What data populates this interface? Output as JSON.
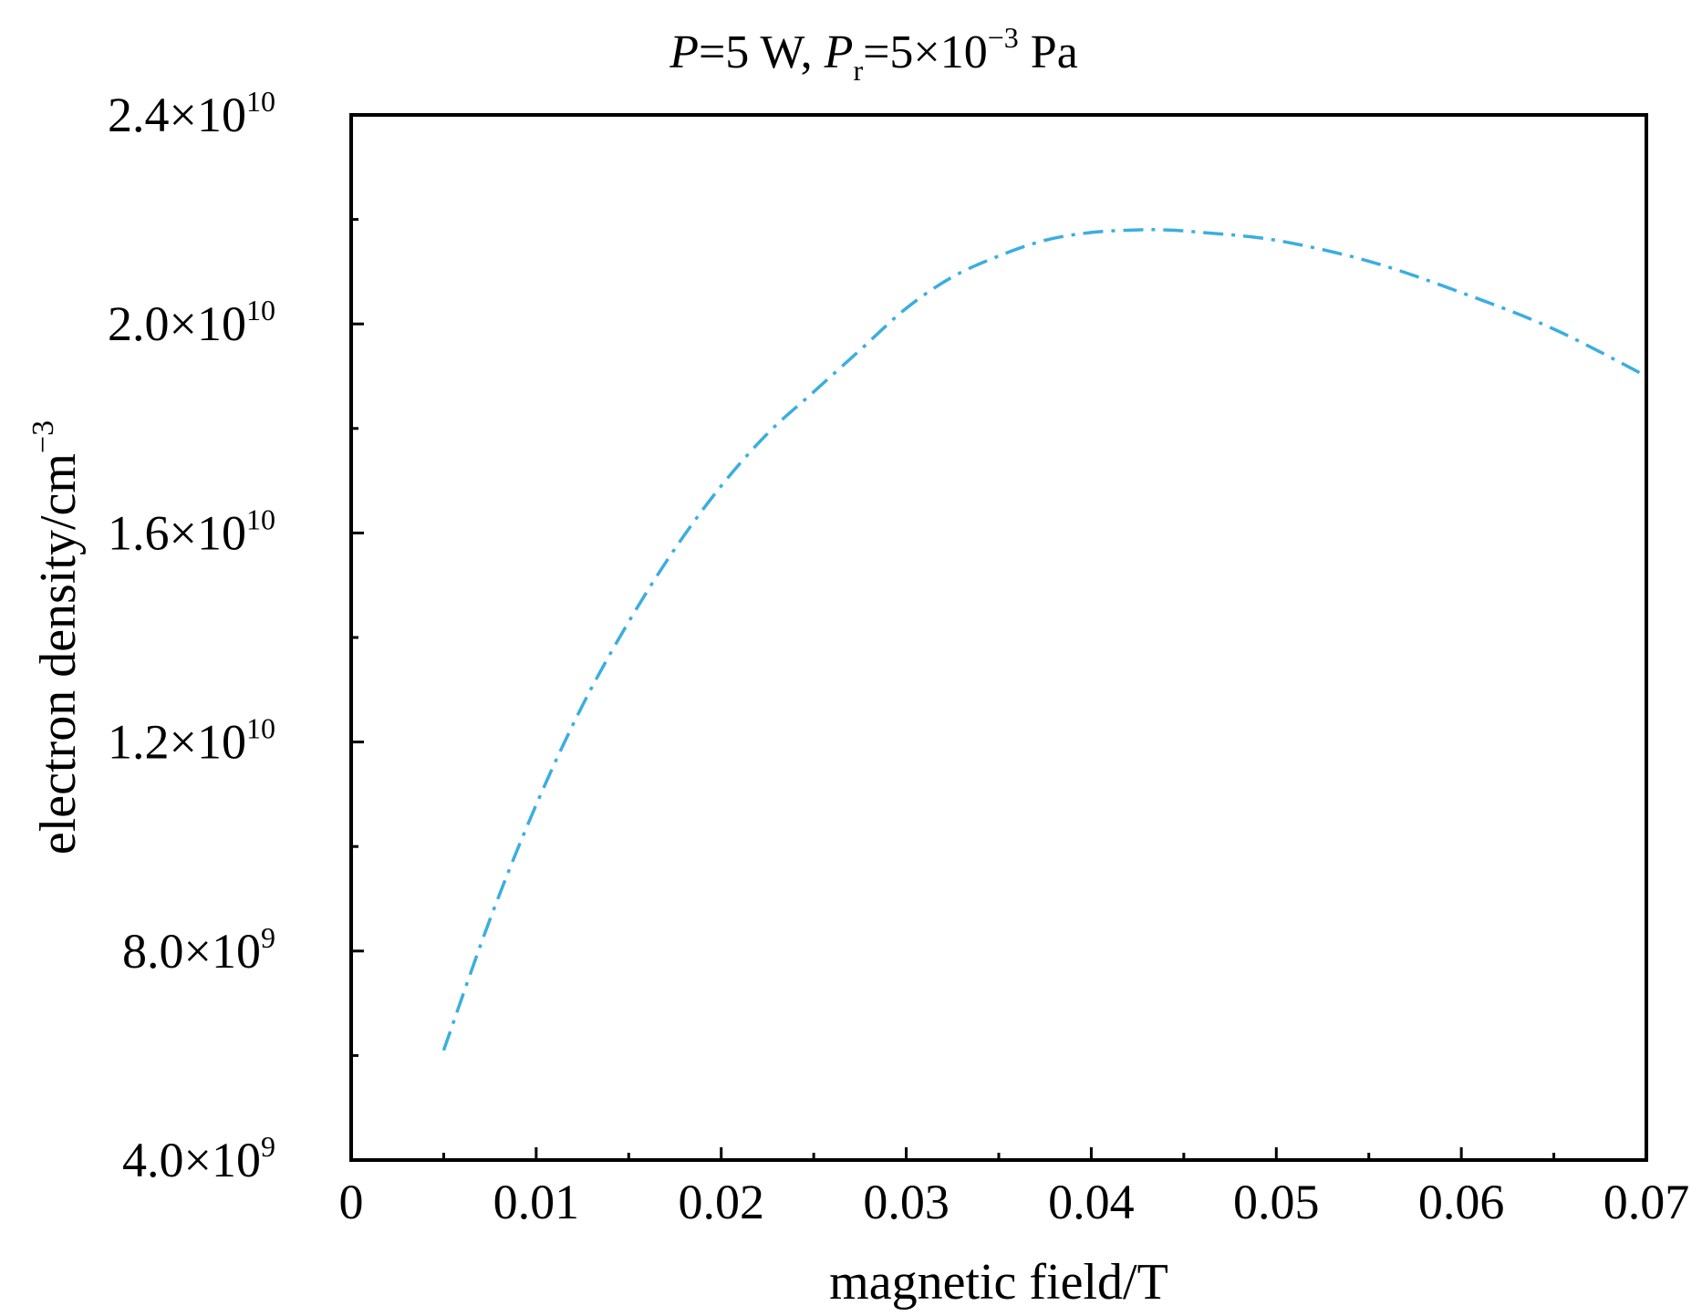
{
  "chart_data": {
    "type": "line",
    "title": {
      "p_symbol": "P",
      "p_value": "=5 W, ",
      "pr_symbol": "P",
      "pr_subscript": "r",
      "pr_value": "=5×10",
      "pr_exponent": "−3",
      "pr_unit": " Pa"
    },
    "xlabel": "magnetic field/T",
    "ylabel_text": "electron density/cm",
    "ylabel_exponent": "−3",
    "xlim": [
      0,
      0.07
    ],
    "ylim": [
      4000000000.0,
      24000000000.0
    ],
    "x_ticks": [
      {
        "value": 0,
        "label": "0"
      },
      {
        "value": 0.01,
        "label": "0.01"
      },
      {
        "value": 0.02,
        "label": "0.02"
      },
      {
        "value": 0.03,
        "label": "0.03"
      },
      {
        "value": 0.04,
        "label": "0.04"
      },
      {
        "value": 0.05,
        "label": "0.05"
      },
      {
        "value": 0.06,
        "label": "0.06"
      },
      {
        "value": 0.07,
        "label": "0.07"
      }
    ],
    "x_minor_ticks": [
      0.005,
      0.015,
      0.025,
      0.035,
      0.045,
      0.055,
      0.065
    ],
    "y_ticks": [
      {
        "value": 4000000000.0,
        "mantissa": "4.0×10",
        "exponent": "9"
      },
      {
        "value": 8000000000.0,
        "mantissa": "8.0×10",
        "exponent": "9"
      },
      {
        "value": 12000000000.0,
        "mantissa": "1.2×10",
        "exponent": "10"
      },
      {
        "value": 16000000000.0,
        "mantissa": "1.6×10",
        "exponent": "10"
      },
      {
        "value": 20000000000.0,
        "mantissa": "2.0×10",
        "exponent": "10"
      },
      {
        "value": 24000000000.0,
        "mantissa": "2.4×10",
        "exponent": "10"
      }
    ],
    "y_minor_ticks": [
      6000000000.0,
      10000000000.0,
      14000000000.0,
      18000000000.0,
      22000000000.0
    ],
    "grid": false,
    "series": [
      {
        "color": "#3aaee0",
        "line_style": "dash-dot",
        "x": [
          0.005,
          0.0075,
          0.01,
          0.0125,
          0.015,
          0.0175,
          0.02,
          0.0225,
          0.025,
          0.0275,
          0.03,
          0.0325,
          0.035,
          0.0375,
          0.04,
          0.0425,
          0.044,
          0.046,
          0.05,
          0.055,
          0.06,
          0.065,
          0.07
        ],
        "y": [
          6100000000.0,
          8600000000.0,
          10800000000.0,
          12700000000.0,
          14300000000.0,
          15700000000.0,
          16900000000.0,
          17900000000.0,
          18700000000.0,
          19500000000.0,
          20300000000.0,
          20900000000.0,
          21300000000.0,
          21600000000.0,
          21750000000.0,
          21800000000.0,
          21800000000.0,
          21750000000.0,
          21600000000.0,
          21200000000.0,
          20600000000.0,
          19900000000.0,
          19000000000.0
        ]
      }
    ]
  }
}
